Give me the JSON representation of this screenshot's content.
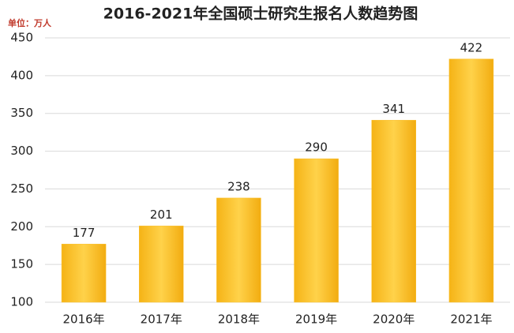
{
  "chart_data": {
    "type": "bar",
    "title": "2016-2021年全国硕士研究生报名人数趋势图",
    "unit_label": "单位：万人",
    "categories": [
      "2016年",
      "2017年",
      "2018年",
      "2019年",
      "2020年",
      "2021年"
    ],
    "values": [
      177,
      201,
      238,
      290,
      341,
      422
    ],
    "color": "#fbc02d",
    "ylim": [
      100,
      450
    ],
    "yticks": [
      100,
      150,
      200,
      250,
      300,
      350,
      400,
      450
    ],
    "grid": true
  }
}
